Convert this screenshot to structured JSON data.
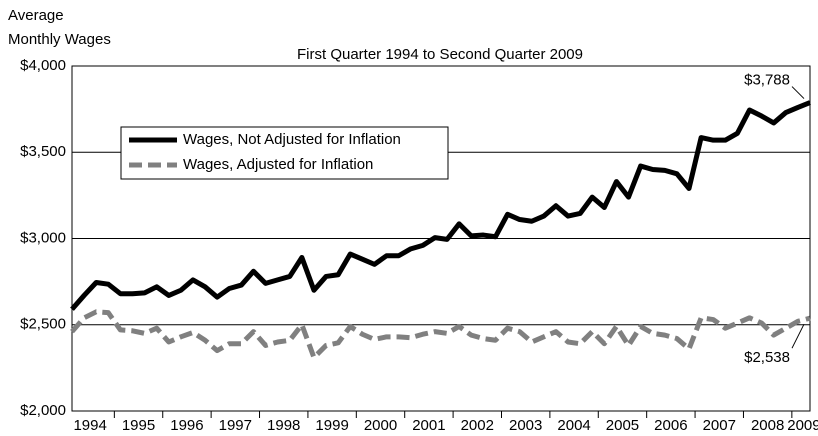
{
  "chart_data": {
    "type": "line",
    "ylabel": [
      "Average",
      "Monthly Wages"
    ],
    "subtitle": "First Quarter 1994 to Second Quarter 2009",
    "categories": [
      "1994",
      null,
      null,
      null,
      "1995",
      null,
      null,
      null,
      "1996",
      null,
      null,
      null,
      "1997",
      null,
      null,
      null,
      "1998",
      null,
      null,
      null,
      "1999",
      null,
      null,
      null,
      "2000",
      null,
      null,
      null,
      "2001",
      null,
      null,
      null,
      "2002",
      null,
      null,
      null,
      "2003",
      null,
      null,
      null,
      "2004",
      null,
      null,
      null,
      "2005",
      null,
      null,
      null,
      "2006",
      null,
      null,
      null,
      "2007",
      null,
      null,
      null,
      "2008",
      null,
      null,
      null,
      "2009",
      null
    ],
    "ylim": [
      2000,
      4000
    ],
    "yticks": [
      {
        "value": 2000,
        "label": "$2,000"
      },
      {
        "value": 2500,
        "label": "$2,500"
      },
      {
        "value": 3000,
        "label": "$3,000"
      },
      {
        "value": 3500,
        "label": "$3,500"
      },
      {
        "value": 4000,
        "label": "$4,000"
      }
    ],
    "grid": true,
    "legend": "upper left",
    "series": [
      {
        "name": "Wages, Not Adjusted for Inflation",
        "color": "#000000",
        "style": "solid",
        "values": [
          2590,
          2670,
          2745,
          2735,
          2680,
          2680,
          2685,
          2720,
          2670,
          2700,
          2760,
          2720,
          2660,
          2710,
          2730,
          2810,
          2740,
          2760,
          2780,
          2890,
          2700,
          2780,
          2790,
          2910,
          2880,
          2850,
          2900,
          2900,
          2940,
          2960,
          3005,
          2995,
          3085,
          3015,
          3020,
          3010,
          3140,
          3110,
          3100,
          3130,
          3190,
          3130,
          3145,
          3240,
          3180,
          3330,
          3240,
          3420,
          3400,
          3395,
          3375,
          3290,
          3585,
          3570,
          3570,
          3610,
          3745,
          3710,
          3670,
          3730,
          3760,
          3788
        ],
        "value_labels": [
          null,
          null,
          null,
          null,
          null,
          null,
          null,
          null,
          null,
          null,
          null,
          null,
          null,
          null,
          null,
          null,
          null,
          null,
          null,
          null,
          null,
          null,
          null,
          null,
          null,
          null,
          null,
          null,
          null,
          null,
          null,
          null,
          null,
          null,
          null,
          null,
          null,
          null,
          null,
          null,
          null,
          null,
          null,
          null,
          null,
          null,
          null,
          null,
          null,
          null,
          null,
          null,
          null,
          null,
          null,
          null,
          null,
          null,
          null,
          null,
          null,
          "$3,788"
        ]
      },
      {
        "name": "Wages, Adjusted for Inflation",
        "color": "#808080",
        "style": "dashed",
        "values": [
          2460,
          2540,
          2575,
          2570,
          2470,
          2465,
          2450,
          2480,
          2400,
          2430,
          2455,
          2410,
          2350,
          2390,
          2390,
          2460,
          2380,
          2400,
          2410,
          2500,
          2310,
          2380,
          2395,
          2490,
          2445,
          2415,
          2430,
          2430,
          2425,
          2445,
          2460,
          2450,
          2490,
          2440,
          2420,
          2410,
          2480,
          2460,
          2400,
          2430,
          2460,
          2400,
          2390,
          2460,
          2390,
          2490,
          2380,
          2490,
          2450,
          2440,
          2420,
          2360,
          2540,
          2530,
          2480,
          2510,
          2540,
          2510,
          2440,
          2480,
          2520,
          2538
        ],
        "value_labels": [
          null,
          null,
          null,
          null,
          null,
          null,
          null,
          null,
          null,
          null,
          null,
          null,
          null,
          null,
          null,
          null,
          null,
          null,
          null,
          null,
          null,
          null,
          null,
          null,
          null,
          null,
          null,
          null,
          null,
          null,
          null,
          null,
          null,
          null,
          null,
          null,
          null,
          null,
          null,
          null,
          null,
          null,
          null,
          null,
          null,
          null,
          null,
          null,
          null,
          null,
          null,
          null,
          null,
          null,
          null,
          null,
          null,
          null,
          null,
          null,
          null,
          "$2,538"
        ]
      }
    ]
  }
}
